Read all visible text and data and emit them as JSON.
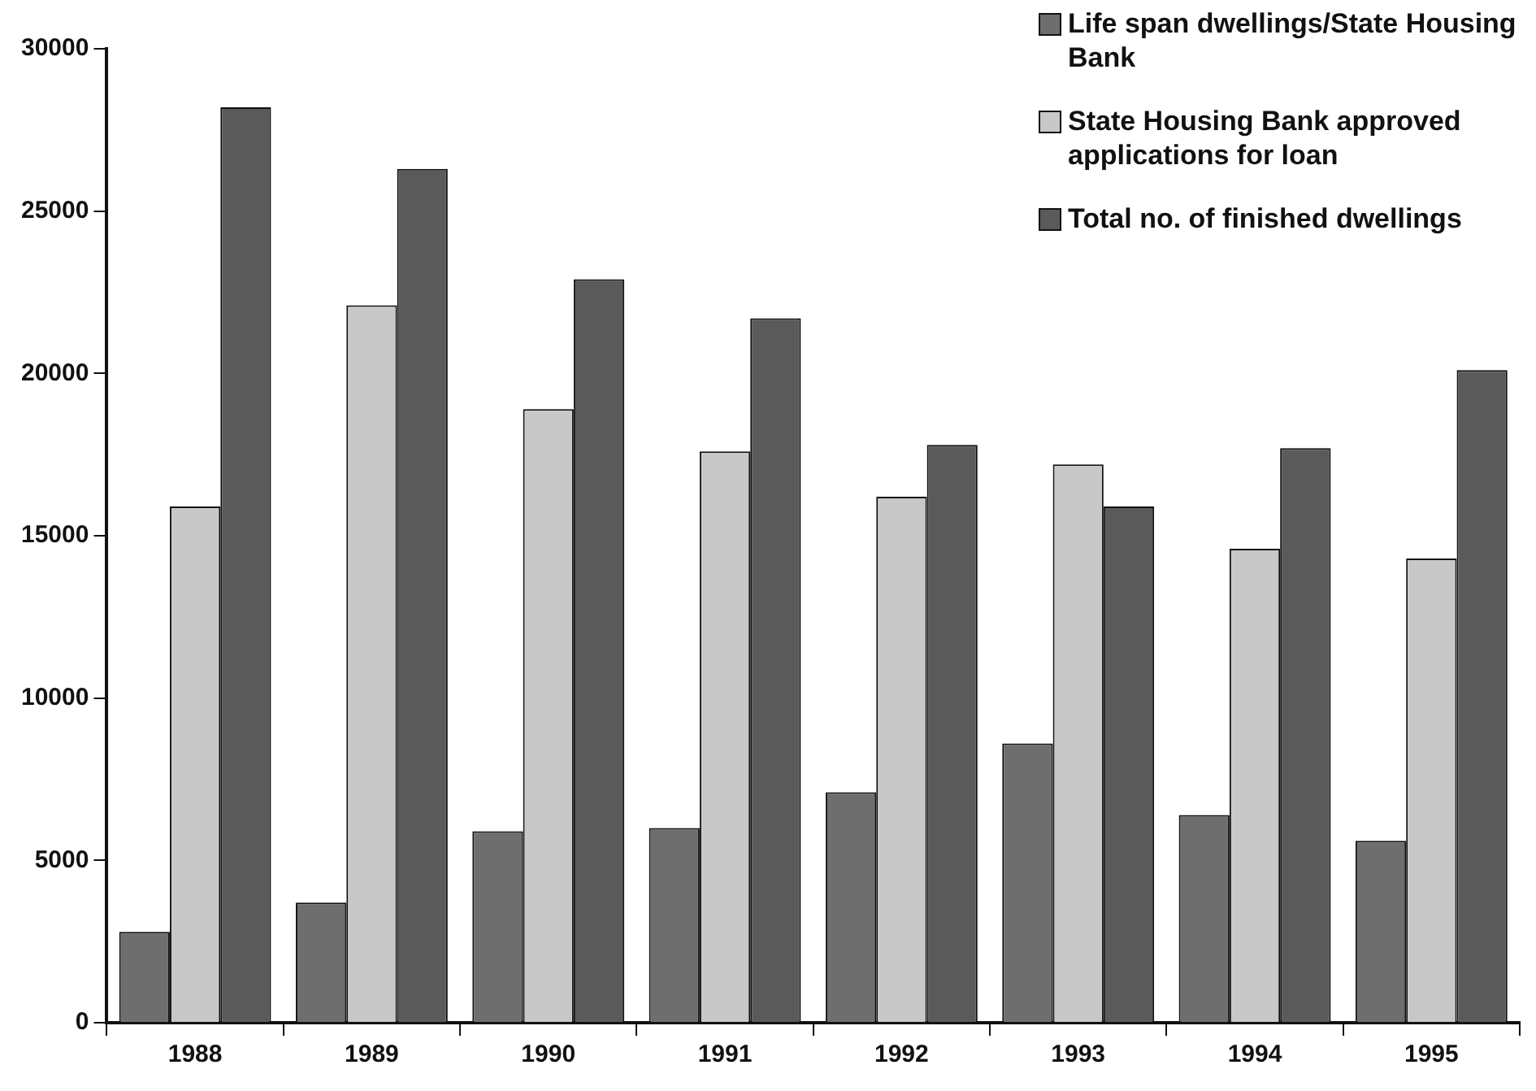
{
  "chart_data": {
    "type": "bar",
    "categories": [
      "1988",
      "1989",
      "1990",
      "1991",
      "1992",
      "1993",
      "1994",
      "1995"
    ],
    "series": [
      {
        "name": "Life span dwellings/State Housing Bank",
        "color": "#6e6e6e",
        "values": [
          2800,
          3700,
          5900,
          6000,
          7100,
          8600,
          6400,
          5600
        ]
      },
      {
        "name": "State Housing Bank approved applications for loan",
        "color": "#c8c8c8",
        "values": [
          15900,
          22100,
          18900,
          17600,
          16200,
          17200,
          14600,
          14300
        ]
      },
      {
        "name": "Total no. of finished dwellings",
        "color": "#5a5a5a",
        "values": [
          28200,
          26300,
          22900,
          21700,
          17800,
          15900,
          17700,
          20100
        ]
      }
    ],
    "ylim": [
      0,
      30000
    ],
    "yticks": [
      0,
      5000,
      10000,
      15000,
      20000,
      25000,
      30000
    ],
    "grid": false,
    "legend": "top right"
  }
}
